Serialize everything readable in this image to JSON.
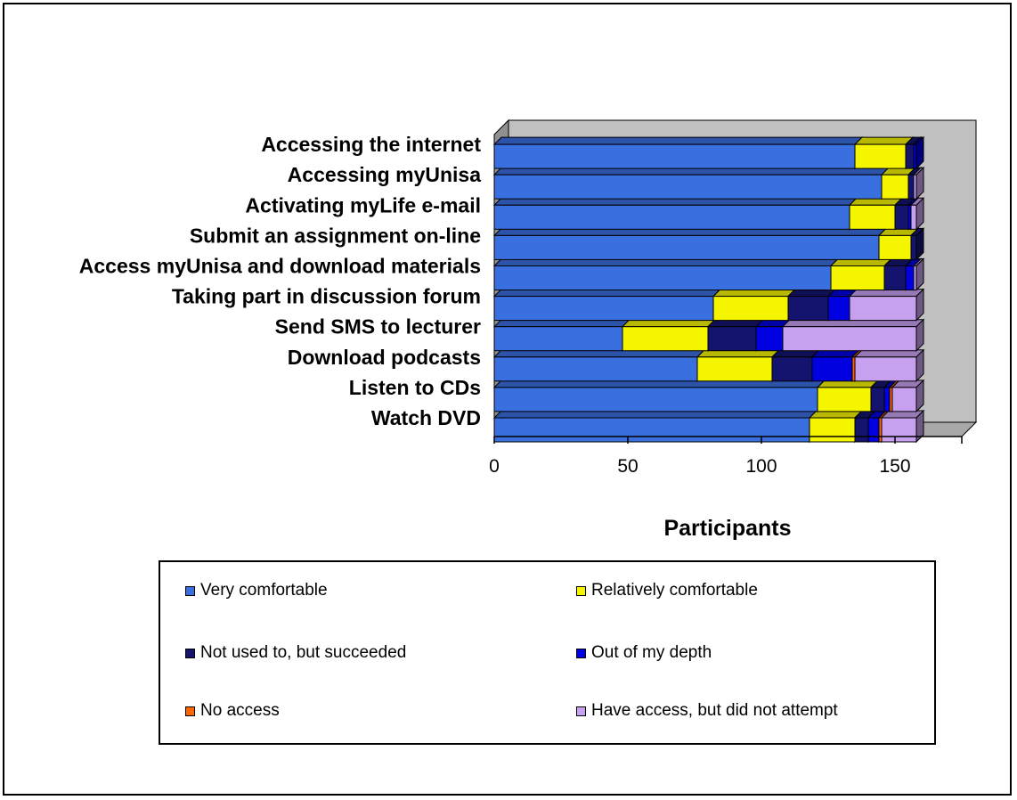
{
  "chart_data": {
    "type": "bar",
    "orientation": "horizontal",
    "stacked": true,
    "three_d": true,
    "categories": [
      "Accessing the internet",
      "Accessing myUnisa",
      "Activating myLife e-mail",
      "Submit an assignment on-line",
      "Access myUnisa and download materials",
      "Taking part in discussion forum",
      "Send SMS to lecturer",
      "Download podcasts",
      "Listen to CDs",
      "Watch DVD"
    ],
    "series": [
      {
        "name": "Very comfortable",
        "color": "#3a6fe0",
        "values": [
          135,
          145,
          133,
          144,
          126,
          82,
          48,
          76,
          121,
          118
        ]
      },
      {
        "name": "Relatively comfortable",
        "color": "#f5f500",
        "values": [
          19,
          10,
          17,
          12,
          20,
          28,
          32,
          28,
          20,
          17
        ]
      },
      {
        "name": "Not used to, but succeeded",
        "color": "#14146e",
        "values": [
          3,
          2,
          5,
          2,
          8,
          15,
          18,
          15,
          5,
          5
        ]
      },
      {
        "name": "Out of my depth",
        "color": "#0000e0",
        "values": [
          1,
          0,
          1,
          0,
          3,
          8,
          10,
          15,
          2,
          4
        ]
      },
      {
        "name": "No access",
        "color": "#ff6600",
        "values": [
          0,
          0,
          0,
          0,
          0,
          0,
          0,
          1,
          1,
          1
        ]
      },
      {
        "name": "Have access, but did not attempt",
        "color": "#c8a0f0",
        "values": [
          0,
          1,
          2,
          0,
          1,
          25,
          50,
          23,
          9,
          13
        ]
      }
    ],
    "xticks": [
      0,
      50,
      100,
      150
    ],
    "xlim": [
      0,
      175
    ],
    "xlabel": "Participants",
    "ylabel": "",
    "title": "",
    "grid": false,
    "wall_color": "#c0c0c0",
    "legend_position": "bottom"
  }
}
